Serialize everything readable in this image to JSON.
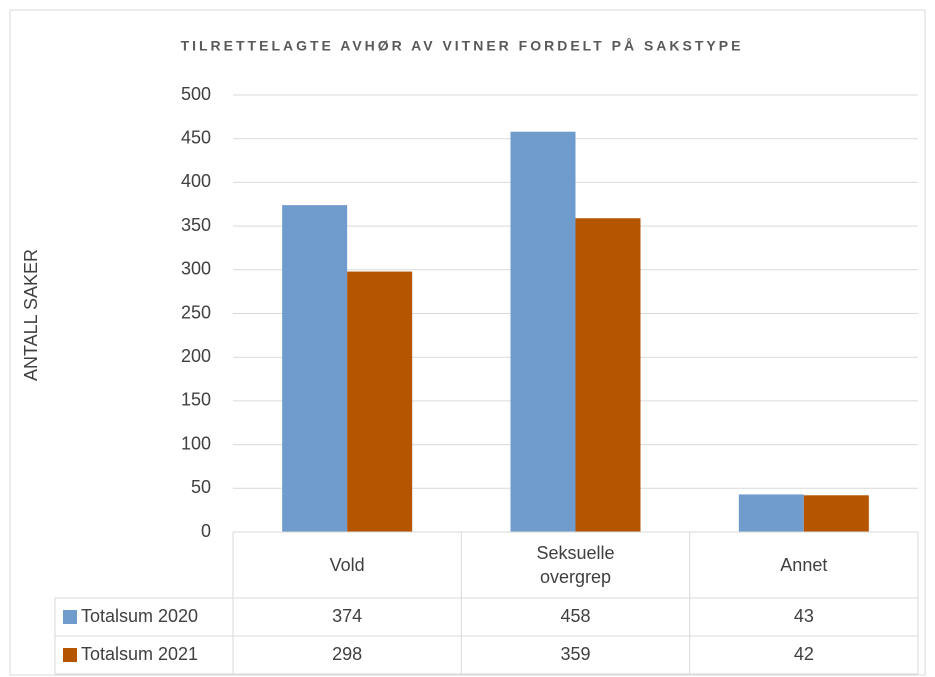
{
  "chart_data": {
    "type": "bar",
    "title": "TILRETTELAGTE AVHØR AV VITNER FORDELT PÅ SAKSTYPE",
    "y_label": "ANTALL SAKER",
    "categories": [
      "Vold",
      "Seksuelle overgrep",
      "Annet"
    ],
    "series": [
      {
        "name": "Totalsum 2020",
        "color": "#6f9bcd",
        "values": [
          374,
          458,
          43
        ]
      },
      {
        "name": "Totalsum 2021",
        "color": "#b55500",
        "values": [
          298,
          359,
          42
        ]
      }
    ],
    "ylim": [
      0,
      500
    ],
    "yticks": [
      0,
      50,
      100,
      150,
      200,
      250,
      300,
      350,
      400,
      450,
      500
    ],
    "grid": true,
    "data_table": true
  }
}
